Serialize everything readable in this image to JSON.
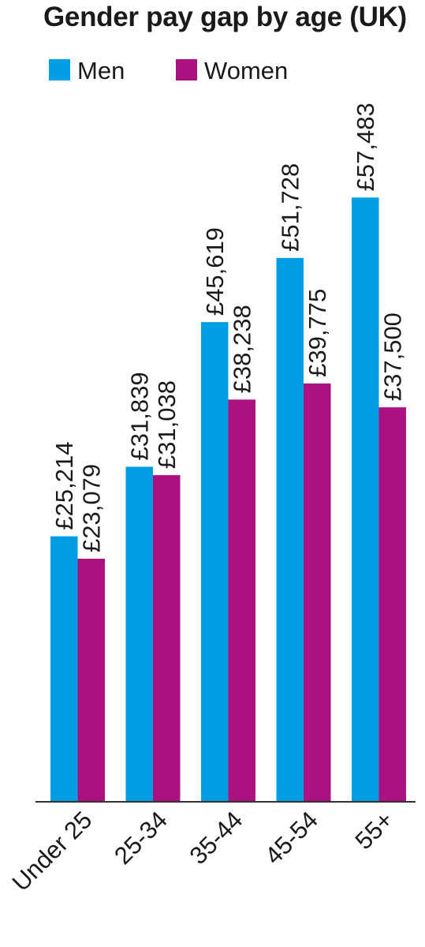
{
  "chart_data": {
    "type": "bar",
    "title": "Gender pay gap by age (UK)",
    "categories": [
      "Under 25",
      "25-34",
      "35-44",
      "45-54",
      "55+"
    ],
    "series": [
      {
        "name": "Men",
        "color": "#009fe3",
        "values": [
          25214,
          31839,
          45619,
          51728,
          57483
        ],
        "labels": [
          "£25,214",
          "£31,839",
          "£45,619",
          "£51,728",
          "£57,483"
        ]
      },
      {
        "name": "Women",
        "color": "#ab1280",
        "values": [
          23079,
          31038,
          38238,
          39775,
          37500
        ],
        "labels": [
          "£23,079",
          "£31,038",
          "£38,238",
          "£39,775",
          "£37,500"
        ]
      }
    ],
    "ylim": [
      0,
      70000
    ],
    "grid": false,
    "legend_position": "top-left"
  }
}
